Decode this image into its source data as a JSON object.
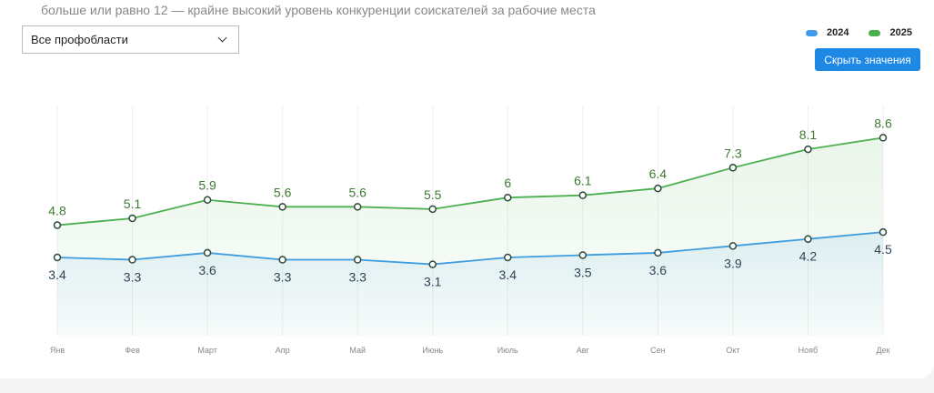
{
  "note": "больше или равно 12 — крайне высокий уровень конкуренции соискателей за рабочие места",
  "filter": {
    "selected": "Все профобласти"
  },
  "toggle_button": "Скрыть значения",
  "chart_data": {
    "type": "line",
    "categories": [
      "Янв",
      "Фев",
      "Март",
      "Апр",
      "Май",
      "Июнь",
      "Июль",
      "Авг",
      "Сен",
      "Окт",
      "Нояб",
      "Дек"
    ],
    "series": [
      {
        "name": "2024",
        "color": "#3d9be9",
        "values": [
          3.4,
          3.3,
          3.6,
          3.3,
          3.3,
          3.1,
          3.4,
          3.5,
          3.6,
          3.9,
          4.2,
          4.5
        ]
      },
      {
        "name": "2025",
        "color": "#4caf50",
        "values": [
          4.8,
          5.1,
          5.9,
          5.6,
          5.6,
          5.5,
          6,
          6.1,
          6.4,
          7.3,
          8.1,
          8.6
        ]
      }
    ],
    "ylim": [
      0,
      10
    ],
    "grid": "vertical",
    "legend": "top-right",
    "data_labels": true,
    "area_fill": true
  }
}
